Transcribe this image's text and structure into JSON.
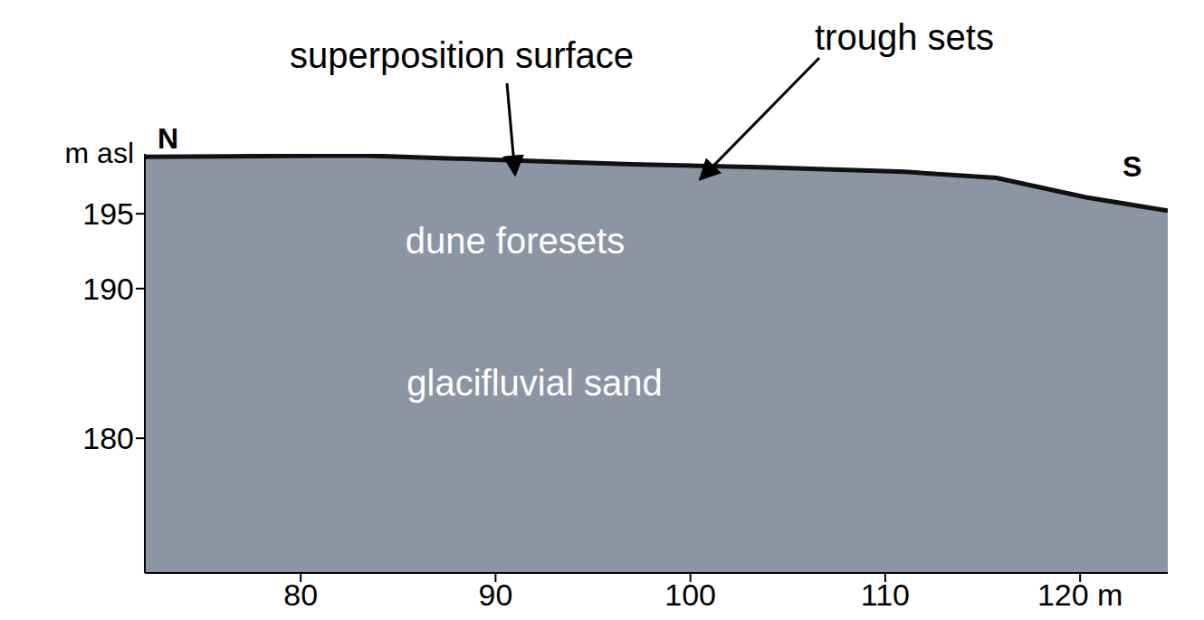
{
  "chart_data": {
    "type": "area",
    "y_label": "m asl",
    "directions": {
      "left": "N",
      "right": "S"
    },
    "x": [
      72,
      83,
      97,
      104,
      111,
      115.7,
      120.3,
      124.5
    ],
    "values": [
      198.8,
      198.9,
      198.3,
      198.1,
      197.8,
      197.4,
      196.1,
      195.2
    ],
    "color": "#8b95a3",
    "xlim": [
      72,
      124.5
    ],
    "xticks": [
      80,
      90,
      100,
      110,
      {
        "value": 120,
        "label": "120 m"
      }
    ],
    "ylim": [
      171,
      199
    ],
    "yticks": [
      180,
      190,
      195
    ],
    "annotations": [
      {
        "text": "superposition surface",
        "x": 91,
        "y": 197.6,
        "style": "callout"
      },
      {
        "text": "trough sets",
        "x": 100.5,
        "y": 197.3,
        "style": "callout"
      },
      {
        "text": "dune foresets",
        "x": 91,
        "y": 193,
        "style": "inside"
      },
      {
        "text": "glacifluvial sand",
        "x": 92,
        "y": 183.5,
        "style": "inside"
      }
    ]
  }
}
